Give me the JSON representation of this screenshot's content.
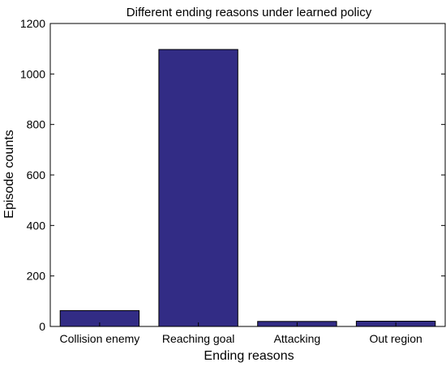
{
  "chart_data": {
    "type": "bar",
    "title": "Different ending reasons under learned policy",
    "xlabel": "Ending reasons",
    "ylabel": "Episode counts",
    "categories": [
      "Collision enemy",
      "Reaching goal",
      "Attacking",
      "Out region"
    ],
    "values": [
      63,
      1097,
      20,
      21
    ],
    "ylim": [
      0,
      1200
    ],
    "yticks": [
      "0",
      "200",
      "400",
      "600",
      "800",
      "1000",
      "1200"
    ],
    "grid": false,
    "legend": "none",
    "colors": {
      "bar": "#322c85",
      "axis": "#000000",
      "background": "#ffffff"
    }
  }
}
